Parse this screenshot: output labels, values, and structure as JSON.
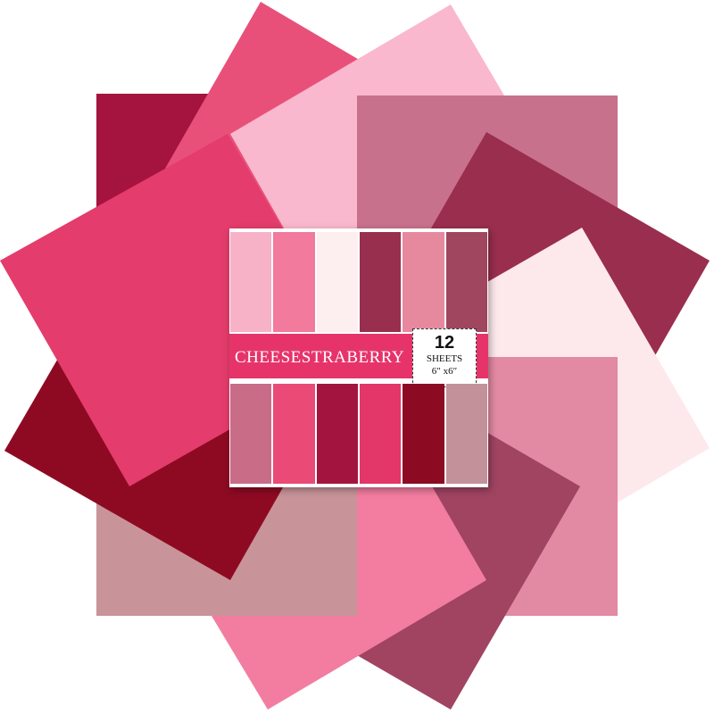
{
  "product": {
    "brand": "CHEESESTRABERRY",
    "count": "12",
    "unit": "SHEETS",
    "size": "6″ x6″"
  },
  "colors": {
    "background": "#ffffff",
    "label_band": "#e6346b",
    "sheets": [
      "#a5143f",
      "#e8507a",
      "#f9b8cd",
      "#c8718c",
      "#9a2e4e",
      "#fde9ec",
      "#e28aa3",
      "#a04462",
      "#f27da0",
      "#c89499",
      "#8e0a23",
      "#e43c6c"
    ],
    "pack_top_strips": [
      "#f7b2c8",
      "#f27a9d",
      "#fdeef0",
      "#992f4f",
      "#e6899f",
      "#a0465f"
    ],
    "pack_bottom_strips": [
      "#c86c88",
      "#ea4b76",
      "#a3153f",
      "#e23768",
      "#8c0a22",
      "#c2919a"
    ]
  }
}
